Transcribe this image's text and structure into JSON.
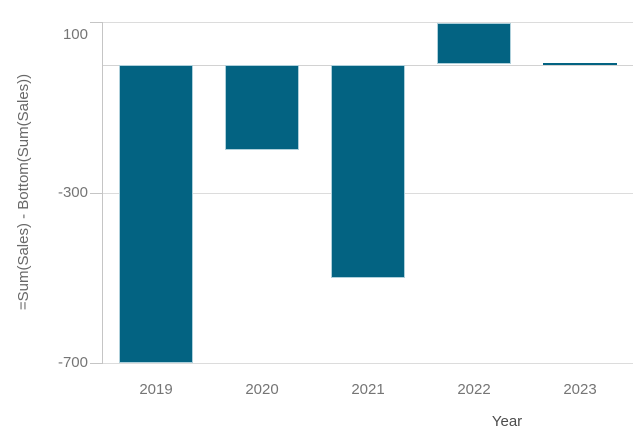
{
  "chart_data": {
    "type": "bar",
    "categories": [
      "2019",
      "2020",
      "2021",
      "2022",
      "2023"
    ],
    "values": [
      -700,
      -200,
      -500,
      97,
      3
    ],
    "title": "",
    "xlabel": "Year",
    "ylabel": "=Sum(Sales) - Bottom(Sum(Sales))",
    "ylim": [
      -700,
      100
    ],
    "yticks": [
      100,
      -300,
      -700
    ],
    "ytick_labels": [
      "100",
      "-300",
      "-700"
    ],
    "zero_line": true,
    "grid": "on",
    "legend": "none"
  },
  "colors": {
    "bar": "#036382",
    "bar_border": "#aed0db",
    "grid": "#dcdcdc",
    "zero_line": "#d2d2d2",
    "axis": "#c5c5c5",
    "tick_label": "#757575",
    "x_axis_title": "#4d4d4d",
    "y_axis_title": "#686868",
    "background": "#ffffff"
  }
}
